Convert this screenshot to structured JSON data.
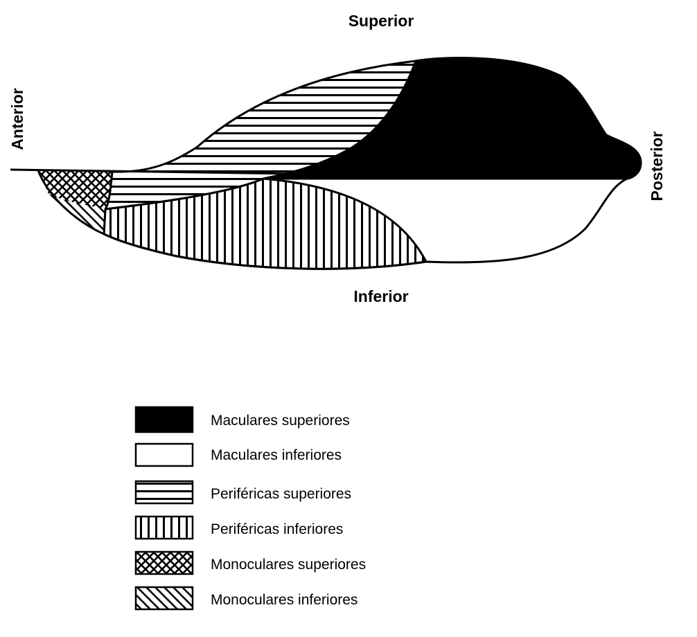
{
  "directions": {
    "superior": "Superior",
    "inferior": "Inferior",
    "anterior": "Anterior",
    "posterior": "Posterior"
  },
  "legend": [
    {
      "label": "Maculares superiores",
      "pattern": "solid-black"
    },
    {
      "label": "Maculares inferiores",
      "pattern": "white"
    },
    {
      "label": "Periféricas superiores",
      "pattern": "horizontal-lines"
    },
    {
      "label": "Periféricas inferiores",
      "pattern": "vertical-lines"
    },
    {
      "label": "Monoculares superiores",
      "pattern": "crosshatch"
    },
    {
      "label": "Monoculares inferiores",
      "pattern": "diagonal-lines"
    }
  ],
  "colors": {
    "ink": "#000000",
    "paper": "#ffffff"
  }
}
